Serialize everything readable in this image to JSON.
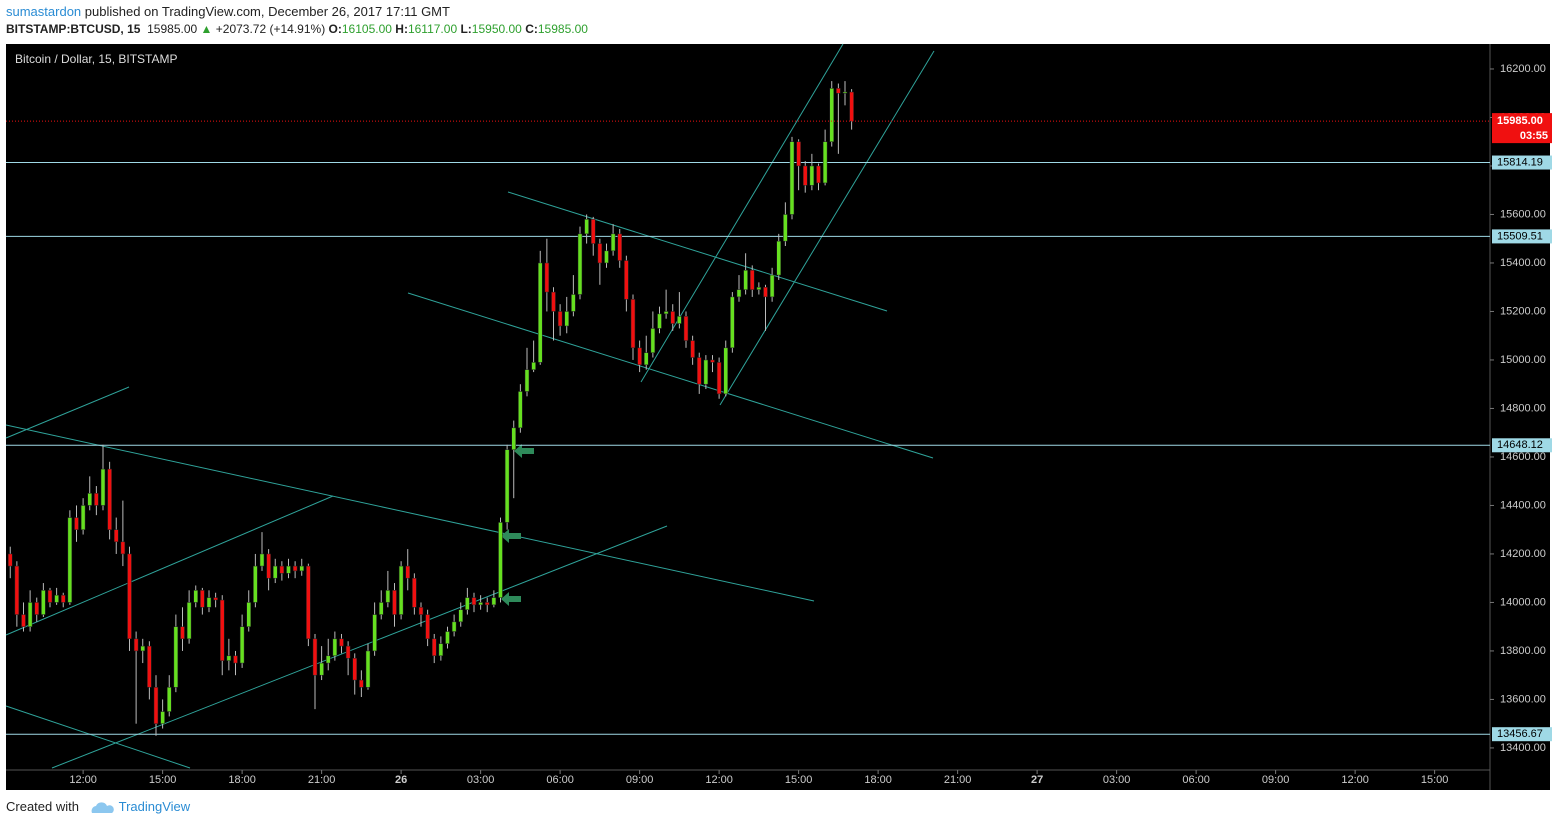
{
  "header": {
    "author": "sumastardon",
    "published": "published on TradingView.com, December 26, 2017 17:11 GMT",
    "symbol": "BITSTAMP:BTCUSD, 15",
    "price": "15985.00",
    "arrow": "▲",
    "change": "+2073.72 (+14.91%)",
    "o_label": "O:",
    "o": "16105.00",
    "h_label": "H:",
    "h": "16117.00",
    "l_label": "L:",
    "l": "15950.00",
    "c_label": "C:",
    "c": "15985.00"
  },
  "footer": {
    "created": "Created with",
    "brand": "TradingView"
  },
  "chart_data": {
    "type": "candlestick",
    "title": "Bitcoin / Dollar, 15, BITSTAMP",
    "up_color": "#66e020",
    "down_color": "#f01010",
    "hline_color": "#9fd9e6",
    "last_price_color": "#f01010",
    "xlim": [
      9.09,
      65.09
    ],
    "ylim": [
      13309,
      16303
    ],
    "xticks": [
      {
        "value": 12,
        "label": "12:00"
      },
      {
        "value": 15,
        "label": "15:00"
      },
      {
        "value": 18,
        "label": "18:00"
      },
      {
        "value": 21,
        "label": "21:00"
      },
      {
        "value": 24,
        "label": "26"
      },
      {
        "value": 27,
        "label": "03:00"
      },
      {
        "value": 30,
        "label": "06:00"
      },
      {
        "value": 33,
        "label": "09:00"
      },
      {
        "value": 36,
        "label": "12:00"
      },
      {
        "value": 39,
        "label": "15:00"
      },
      {
        "value": 42,
        "label": "18:00"
      },
      {
        "value": 45,
        "label": "21:00"
      },
      {
        "value": 48,
        "label": "27"
      },
      {
        "value": 51,
        "label": "03:00"
      },
      {
        "value": 54,
        "label": "06:00"
      },
      {
        "value": 57,
        "label": "09:00"
      },
      {
        "value": 60,
        "label": "12:00"
      },
      {
        "value": 63,
        "label": "15:00"
      }
    ],
    "yticks": [
      {
        "value": 16200,
        "label": "16200.00"
      },
      {
        "value": 16000,
        "label": "16000.00"
      },
      {
        "value": 15800,
        "label": "15800.00"
      },
      {
        "value": 15600,
        "label": "15600.00"
      },
      {
        "value": 15400,
        "label": "15400.00"
      },
      {
        "value": 15200,
        "label": "15200.00"
      },
      {
        "value": 15000,
        "label": "15000.00"
      },
      {
        "value": 14800,
        "label": "14800.00"
      },
      {
        "value": 14600,
        "label": "14600.00"
      },
      {
        "value": 14400,
        "label": "14400.00"
      },
      {
        "value": 14200,
        "label": "14200.00"
      },
      {
        "value": 14000,
        "label": "14000.00"
      },
      {
        "value": 13800,
        "label": "13800.00"
      },
      {
        "value": 13600,
        "label": "13600.00"
      },
      {
        "value": 13400,
        "label": "13400.00"
      }
    ],
    "hlines": [
      15814.19,
      15509.51,
      14648.12,
      13456.67
    ],
    "last_price": {
      "value": 15985,
      "label": "15985.00"
    },
    "countdown": "03:55",
    "x": [
      9.25,
      9.5,
      9.75,
      10,
      10.25,
      10.5,
      10.75,
      11,
      11.25,
      11.5,
      11.75,
      12,
      12.25,
      12.5,
      12.75,
      13,
      13.25,
      13.5,
      13.75,
      14,
      14.25,
      14.5,
      14.75,
      15,
      15.25,
      15.5,
      15.75,
      16,
      16.25,
      16.5,
      16.75,
      17,
      17.25,
      17.5,
      17.75,
      18,
      18.25,
      18.5,
      18.75,
      19,
      19.25,
      19.5,
      19.75,
      20,
      20.25,
      20.5,
      20.75,
      21,
      21.25,
      21.5,
      21.75,
      22,
      22.25,
      22.5,
      22.75,
      23,
      23.25,
      23.5,
      23.75,
      24,
      24.25,
      24.5,
      24.75,
      25,
      25.25,
      25.5,
      25.75,
      26,
      26.25,
      26.5,
      26.75,
      27,
      27.25,
      27.5,
      27.75,
      28,
      28.25,
      28.5,
      28.75,
      29,
      29.25,
      29.5,
      29.75,
      30,
      30.25,
      30.5,
      30.75,
      31,
      31.25,
      31.5,
      31.75,
      32,
      32.25,
      32.5,
      32.75,
      33,
      33.25,
      33.5,
      33.75,
      34,
      34.25,
      34.5,
      34.75,
      35,
      35.25,
      35.5,
      35.75,
      36,
      36.25,
      36.5,
      36.75,
      37,
      37.25,
      37.5,
      37.75,
      38,
      38.25,
      38.5,
      38.75,
      39,
      39.25,
      39.5,
      39.75,
      40,
      40.25,
      40.5,
      40.75,
      41
    ],
    "open": [
      14200,
      14150,
      13950,
      13900,
      14000,
      13950,
      14050,
      14000,
      14030,
      14000,
      14350,
      14300,
      14400,
      14450,
      14400,
      14550,
      14300,
      14250,
      14200,
      13850,
      13800,
      13820,
      13650,
      13500,
      13550,
      13650,
      13900,
      13850,
      14000,
      14050,
      13980,
      14020,
      14010,
      13760,
      13780,
      13750,
      13900,
      14000,
      14150,
      14200,
      14100,
      14150,
      14120,
      14150,
      14130,
      14150,
      13850,
      13700,
      13750,
      13780,
      13850,
      13820,
      13770,
      13680,
      13650,
      13800,
      13950,
      14000,
      14050,
      13950,
      14150,
      14100,
      13980,
      13950,
      13850,
      13780,
      13830,
      13880,
      13920,
      13970,
      14020,
      13990,
      14000,
      13990,
      14020,
      14330,
      14630,
      14720,
      14870,
      14960,
      14990,
      15400,
      15280,
      15200,
      15140,
      15200,
      15270,
      15520,
      15580,
      15480,
      15400,
      15450,
      15520,
      15410,
      15250,
      15050,
      14980,
      15030,
      15130,
      15190,
      15200,
      15150,
      15180,
      15080,
      15010,
      14900,
      15000,
      14990,
      14860,
      15050,
      15260,
      15290,
      15370,
      15290,
      15300,
      15260,
      15350,
      15490,
      15600,
      15900,
      15800,
      15720,
      15800,
      15730,
      15900,
      16120,
      16100,
      16105
    ],
    "high": [
      14230,
      14170,
      14000,
      14050,
      14020,
      14080,
      14060,
      14060,
      14040,
      14380,
      14400,
      14430,
      14520,
      14480,
      14650,
      14580,
      14350,
      14420,
      14230,
      13880,
      13850,
      13840,
      13700,
      13600,
      13700,
      13950,
      13980,
      14050,
      14070,
      14060,
      14050,
      14040,
      14030,
      13850,
      13800,
      13950,
      14050,
      14200,
      14290,
      14220,
      14180,
      14170,
      14180,
      14170,
      14180,
      14160,
      13870,
      13820,
      13850,
      13880,
      13870,
      13840,
      13790,
      13720,
      13830,
      14000,
      14050,
      14130,
      14080,
      14170,
      14220,
      14120,
      14000,
      13970,
      13870,
      13860,
      13900,
      13950,
      14000,
      14060,
      14040,
      14030,
      14020,
      14050,
      14350,
      14650,
      14750,
      14900,
      15050,
      15080,
      15450,
      15500,
      15300,
      15230,
      15260,
      15350,
      15550,
      15600,
      15590,
      15500,
      15480,
      15560,
      15540,
      15430,
      15270,
      15080,
      15100,
      15200,
      15220,
      15290,
      15230,
      15280,
      15200,
      15100,
      15030,
      15020,
      15020,
      15010,
      15080,
      15280,
      15350,
      15440,
      15390,
      15320,
      15310,
      15380,
      15520,
      15650,
      15920,
      15910,
      15820,
      15850,
      15810,
      15950,
      16150,
      16140,
      16150,
      16117
    ],
    "low": [
      14100,
      13900,
      13880,
      13880,
      13920,
      13940,
      13980,
      13990,
      13980,
      13990,
      14250,
      14280,
      14380,
      14360,
      14380,
      14260,
      14200,
      14150,
      13800,
      13500,
      13750,
      13600,
      13450,
      13480,
      13530,
      13630,
      13800,
      13830,
      13980,
      13950,
      13960,
      13980,
      13700,
      13720,
      13700,
      13730,
      13880,
      13980,
      14130,
      14050,
      14080,
      14090,
      14100,
      14100,
      14110,
      13820,
      13560,
      13680,
      13720,
      13760,
      13790,
      13700,
      13620,
      13610,
      13640,
      13780,
      13930,
      13980,
      13900,
      13930,
      14050,
      13950,
      13900,
      13820,
      13750,
      13760,
      13810,
      13860,
      13900,
      13950,
      13960,
      13970,
      13960,
      13980,
      14000,
      14300,
      14430,
      14700,
      14850,
      14950,
      14980,
      15200,
      15080,
      15100,
      15110,
      15180,
      15250,
      15480,
      15430,
      15310,
      15380,
      15430,
      15380,
      15200,
      15000,
      14950,
      14960,
      15010,
      15110,
      15170,
      15120,
      15130,
      15050,
      14980,
      14860,
      14880,
      14950,
      14840,
      14850,
      15030,
      15240,
      15270,
      15260,
      15270,
      15120,
      15240,
      15330,
      15470,
      15580,
      15700,
      15690,
      15700,
      15700,
      15720,
      15880,
      15850,
      16050,
      15950
    ],
    "close": [
      14150,
      13950,
      13900,
      14000,
      13950,
      14050,
      14000,
      14030,
      14000,
      14350,
      14300,
      14400,
      14450,
      14400,
      14550,
      14300,
      14250,
      14200,
      13850,
      13800,
      13820,
      13650,
      13500,
      13550,
      13650,
      13900,
      13850,
      14000,
      14050,
      13980,
      14020,
      14010,
      13760,
      13780,
      13750,
      13900,
      14000,
      14150,
      14200,
      14100,
      14150,
      14120,
      14150,
      14130,
      14150,
      13850,
      13700,
      13750,
      13780,
      13850,
      13820,
      13770,
      13680,
      13650,
      13800,
      13950,
      14000,
      14050,
      13950,
      14150,
      14100,
      13980,
      13950,
      13850,
      13780,
      13830,
      13880,
      13920,
      13970,
      14020,
      13990,
      14000,
      13990,
      14020,
      14330,
      14630,
      14720,
      14870,
      14960,
      14990,
      15400,
      15280,
      15200,
      15140,
      15200,
      15270,
      15520,
      15580,
      15480,
      15400,
      15450,
      15520,
      15410,
      15250,
      15050,
      14980,
      15030,
      15130,
      15190,
      15200,
      15150,
      15180,
      15080,
      15010,
      14900,
      15000,
      14990,
      14860,
      15050,
      15260,
      15290,
      15370,
      15290,
      15300,
      15260,
      15350,
      15490,
      15600,
      15900,
      15800,
      15720,
      15800,
      15730,
      15900,
      16120,
      16100,
      16105,
      15985
    ]
  }
}
